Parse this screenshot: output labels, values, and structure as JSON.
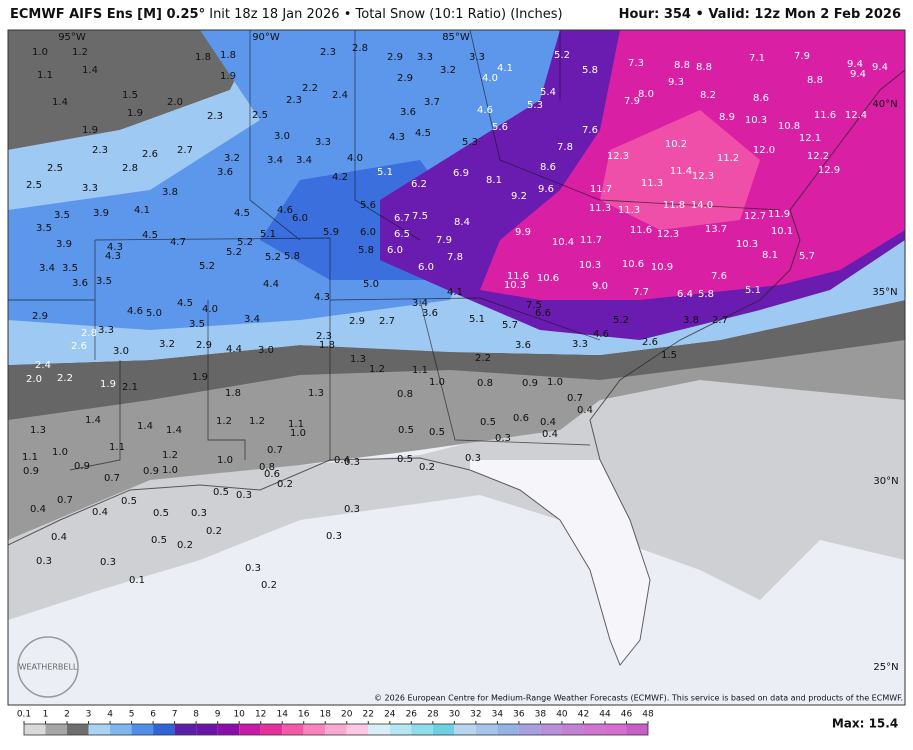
{
  "header": {
    "title": "ECMWF AIFS Ens [M] 0.25°",
    "init": "Init 18z 18 Jan 2026",
    "product": "• Total Snow (10:1 Ratio) (Inches)",
    "hour": "Hour: 354",
    "valid": "• Valid: 12z Mon 2 Feb 2026"
  },
  "map": {
    "lon_labels": [
      "95°W",
      "90°W",
      "85°W"
    ],
    "lat_labels": [
      "40°N",
      "35°N",
      "30°N",
      "25°N"
    ],
    "labels": [
      [
        "1.0",
        "1.2",
        "1.8",
        "1.8",
        "1.1",
        "1.4",
        "1.9",
        "2.3",
        "2.8",
        "2.9",
        "3.3",
        "3.3",
        "5.2",
        "7.3",
        "8.8",
        "8.8",
        "7.1",
        "7.9",
        "9.4",
        "9.4"
      ],
      [
        "1.4",
        "1.5",
        "2.0",
        "2.9",
        "3.2",
        "4.0",
        "4.1",
        "5.4",
        "5.8",
        "9.3",
        "8.2",
        "8.8",
        "9.4"
      ],
      [
        "1.9",
        "2.3",
        "2.5",
        "2.3",
        "2.2",
        "2.4",
        "3.6",
        "3.7",
        "4.6",
        "5.3",
        "8.0",
        "7.9",
        "8.6"
      ],
      [
        "1.9",
        "3.0",
        "3.3",
        "4.3",
        "4.5",
        "5.6",
        "7.6",
        "8.9",
        "10.3",
        "10.8",
        "11.6",
        "12.4"
      ],
      [
        "2.3",
        "2.6",
        "2.7",
        "3.2",
        "3.4",
        "3.4",
        "4.0",
        "5.3",
        "7.8",
        "12.3",
        "10.2",
        "11.2",
        "12.0",
        "12.1",
        "12.2"
      ],
      [
        "2.5",
        "2.8",
        "3.6",
        "4.2",
        "5.1",
        "6.2",
        "6.9",
        "8.1",
        "8.6",
        "11.7",
        "11.3",
        "11.4",
        "12.3",
        "12.9"
      ],
      [
        "2.5",
        "3.3",
        "3.8",
        "5.6",
        "9.2",
        "9.6",
        "11.3",
        "11.3",
        "11.8",
        "14.0",
        "12.7"
      ],
      [
        "3.5",
        "3.9",
        "4.1",
        "4.5",
        "4.6",
        "6.0",
        "6.7",
        "7.5",
        "8.4",
        "9.9",
        "11.6",
        "12.3",
        "13.7",
        "11.9",
        "10.1"
      ],
      [
        "3.5",
        "4.5",
        "4.7",
        "5.2",
        "5.1",
        "5.9",
        "6.0",
        "6.5",
        "7.9",
        "10.4",
        "11.7",
        "10.3",
        "8.1",
        "5.7"
      ],
      [
        "3.9",
        "4.3",
        "4.3",
        "5.2",
        "5.2",
        "5.8",
        "5.8",
        "6.0",
        "7.8",
        "6.0",
        "10.3",
        "10.6",
        "10.9",
        "7.6"
      ],
      [
        "3.4",
        "3.5",
        "5.2",
        "3.6",
        "3.5",
        "4.4",
        "5.0",
        "11.6",
        "10.6",
        "10.3",
        "9.0",
        "7.7",
        "6.4",
        "5.8",
        "5.1"
      ],
      [
        "4.1",
        "4.3",
        "4.6",
        "5.0",
        "4.5",
        "4.0",
        "3.4",
        "3.6",
        "7.5",
        "6.6",
        "2.9",
        "3.5",
        "3.4",
        "2.9",
        "2.7",
        "5.1",
        "5.7",
        "5.2",
        "3.8",
        "2.7"
      ],
      [
        "2.8",
        "3.3",
        "2.3",
        "4.6",
        "2.6",
        "3.0",
        "3.2",
        "2.9",
        "4.4",
        "3.0",
        "1.8",
        "3.6",
        "3.3",
        "2.6"
      ],
      [
        "2.4",
        "2.2",
        "2.0",
        "1.3",
        "2.2",
        "1.5",
        "1.9",
        "2.1",
        "1.9",
        "1.2",
        "1.1",
        "1.0",
        "0.8",
        "0.9",
        "1.0"
      ],
      [
        "1.8",
        "1.3",
        "0.8",
        "0.7",
        "0.4",
        "1.3",
        "1.4",
        "1.4",
        "1.4",
        "1.2",
        "1.2",
        "1.1",
        "1.0",
        "0.5",
        "0.5",
        "0.5",
        "0.6",
        "0.4",
        "0.3",
        "0.4"
      ],
      [
        "1.1",
        "1.0",
        "1.1",
        "1.2",
        "1.0",
        "0.7",
        "0.4",
        "0.3",
        "0.5",
        "0.2",
        "0.3",
        "0.9",
        "0.9",
        "0.7",
        "0.9",
        "1.0",
        "0.8",
        "0.6",
        "0.2"
      ],
      [
        "0.7",
        "0.5",
        "0.5",
        "0.3",
        "0.4",
        "0.4",
        "0.3",
        "0.5",
        "0.3"
      ],
      [
        "0.4",
        "0.2",
        "0.3",
        "0.3",
        "0.5",
        "0.2",
        "0.3",
        "0.3",
        "0.1",
        "0.2"
      ]
    ],
    "logo": "WEATHERBELL",
    "copyright": "© 2026 European Centre for Medium-Range Weather Forecasts (ECMWF). This service is based on data and products of the ECMWF."
  },
  "legend": {
    "ticks": [
      0.1,
      1,
      2,
      3,
      4,
      5,
      6,
      7,
      8,
      9,
      10,
      12,
      14,
      16,
      18,
      20,
      22,
      24,
      26,
      28,
      30,
      32,
      34,
      36,
      38,
      40,
      42,
      44,
      46,
      48
    ],
    "colors": [
      "#d9d9d9",
      "#a6a6a6",
      "#6e6e6e",
      "#a9d3f5",
      "#7fb6f0",
      "#4f8fe8",
      "#2f63d6",
      "#5b1fa8",
      "#6d14a8",
      "#8a0fa8",
      "#c81aa8",
      "#e52f9d",
      "#f25aa8",
      "#f784bf",
      "#f9a8d2",
      "#fcc9e3",
      "#d9eef7",
      "#b5e6f2",
      "#8edcec",
      "#6fd0e4",
      "#b7d5f0",
      "#a6c4ec",
      "#95b2e7",
      "#a89fe0",
      "#b78fdb",
      "#c47fd6",
      "#cf74d2",
      "#d66dd0",
      "#c85ec8"
    ],
    "max": "Max: 15.4"
  }
}
